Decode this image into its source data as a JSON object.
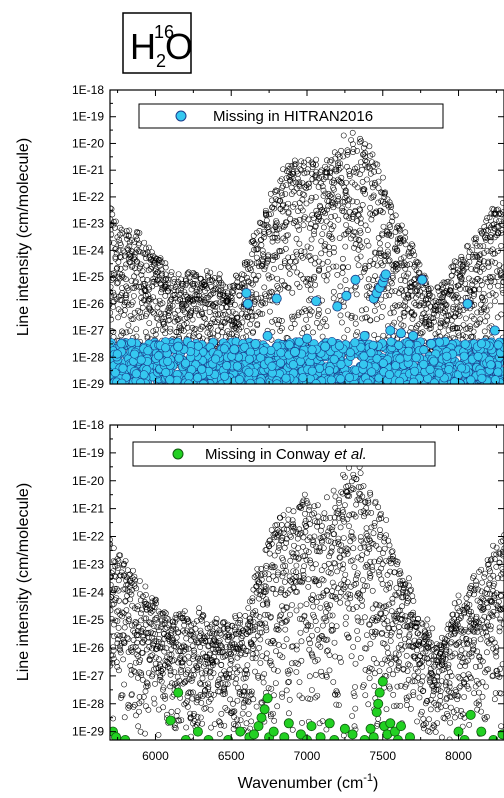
{
  "molecule_label": {
    "main": "H",
    "sub": "2",
    "sup": "16",
    "tail": "O"
  },
  "chart_data": [
    {
      "type": "scatter",
      "id": "top",
      "title": "",
      "xlabel": "",
      "ylabel": "Line intensity (cm/molecule)",
      "xlim": [
        5700,
        8300
      ],
      "ylim_log10": [
        -29,
        -18
      ],
      "log_y": true,
      "ytick_labels": [
        "1E-29",
        "1E-28",
        "1E-27",
        "1E-26",
        "1E-25",
        "1E-24",
        "1E-23",
        "1E-22",
        "1E-21",
        "1E-20",
        "1E-19",
        "1E-18"
      ],
      "legend": {
        "label": "Missing in HITRAN2016",
        "position": "top-center"
      },
      "background_series": {
        "name": "",
        "marker": "open-circle",
        "color": "#000000",
        "envelope": [
          [
            5700,
            -22.5
          ],
          [
            5900,
            -23.6
          ],
          [
            6100,
            -24.8
          ],
          [
            6300,
            -24.8
          ],
          [
            6500,
            -25.2
          ],
          [
            6600,
            -24.6
          ],
          [
            6700,
            -22.5
          ],
          [
            6800,
            -21.3
          ],
          [
            6950,
            -20.5
          ],
          [
            7100,
            -20.8
          ],
          [
            7250,
            -19.8
          ],
          [
            7350,
            -19.7
          ],
          [
            7450,
            -20.5
          ],
          [
            7550,
            -22.3
          ],
          [
            7700,
            -24.0
          ],
          [
            7850,
            -25.8
          ],
          [
            7950,
            -24.8
          ],
          [
            8100,
            -23.4
          ],
          [
            8300,
            -22.0
          ]
        ]
      },
      "highlight_series": {
        "name": "Missing in HITRAN2016",
        "marker": "filled-circle",
        "fill": "#35c8f0",
        "stroke": "#1a3c8c",
        "dense_band": {
          "x_range": [
            5700,
            8300
          ],
          "log10_range": [
            -29,
            -27.4
          ]
        },
        "points": [
          [
            6150,
            -27.6
          ],
          [
            6520,
            -27.7
          ],
          [
            6600,
            -25.6
          ],
          [
            6610,
            -26.0
          ],
          [
            6660,
            -27.5
          ],
          [
            6740,
            -27.2
          ],
          [
            6800,
            -25.8
          ],
          [
            6920,
            -27.8
          ],
          [
            7000,
            -27.3
          ],
          [
            7060,
            -25.9
          ],
          [
            7120,
            -27.6
          ],
          [
            7200,
            -26.1
          ],
          [
            7260,
            -25.7
          ],
          [
            7320,
            -25.1
          ],
          [
            7380,
            -27.2
          ],
          [
            7440,
            -25.8
          ],
          [
            7460,
            -25.6
          ],
          [
            7480,
            -25.4
          ],
          [
            7500,
            -25.2
          ],
          [
            7510,
            -25.0
          ],
          [
            7520,
            -24.9
          ],
          [
            7550,
            -27.0
          ],
          [
            7620,
            -27.1
          ],
          [
            7700,
            -27.2
          ],
          [
            7760,
            -25.1
          ],
          [
            7820,
            -27.5
          ],
          [
            8060,
            -26.0
          ],
          [
            8240,
            -27.0
          ]
        ]
      },
      "xtick_values": [
        6000,
        6500,
        7000,
        7500,
        8000
      ],
      "xtick_labels": [
        "6000",
        "6500",
        "7000",
        "7500",
        "8000"
      ]
    },
    {
      "type": "scatter",
      "id": "bottom",
      "title": "",
      "xlabel": "Wavenumber (cm",
      "xlabel_sup": "-1",
      "xlabel_tail": ")",
      "ylabel": "Line intensity (cm/molecule)",
      "xlim": [
        5700,
        8300
      ],
      "ylim_log10": [
        -29.3,
        -18
      ],
      "log_y": true,
      "ytick_labels": [
        "1E-29",
        "1E-28",
        "1E-27",
        "1E-26",
        "1E-25",
        "1E-24",
        "1E-23",
        "1E-22",
        "1E-21",
        "1E-20",
        "1E-19",
        "1E-18"
      ],
      "legend": {
        "label_main": "Missing in Conway ",
        "label_italic": "et al.",
        "position": "top-center"
      },
      "background_series": {
        "name": "",
        "marker": "open-circle",
        "color": "#000000",
        "envelope": [
          [
            5700,
            -22.3
          ],
          [
            5900,
            -23.6
          ],
          [
            6100,
            -24.8
          ],
          [
            6300,
            -24.8
          ],
          [
            6500,
            -25.2
          ],
          [
            6600,
            -24.6
          ],
          [
            6700,
            -22.5
          ],
          [
            6800,
            -21.3
          ],
          [
            6950,
            -20.5
          ],
          [
            7100,
            -20.8
          ],
          [
            7250,
            -19.8
          ],
          [
            7350,
            -19.7
          ],
          [
            7450,
            -20.5
          ],
          [
            7550,
            -22.3
          ],
          [
            7700,
            -24.0
          ],
          [
            7850,
            -25.8
          ],
          [
            7950,
            -24.8
          ],
          [
            8100,
            -23.4
          ],
          [
            8300,
            -22.0
          ]
        ]
      },
      "highlight_series": {
        "name": "Missing in Conway et al.",
        "marker": "filled-circle",
        "fill": "#22d022",
        "stroke": "#0f5a0f",
        "points": [
          [
            5720,
            -29.0
          ],
          [
            5740,
            -29.2
          ],
          [
            5800,
            -29.3
          ],
          [
            6100,
            -28.6
          ],
          [
            6150,
            -27.6
          ],
          [
            6200,
            -29.3
          ],
          [
            6280,
            -29.0
          ],
          [
            6350,
            -29.3
          ],
          [
            6480,
            -29.3
          ],
          [
            6560,
            -29.0
          ],
          [
            6620,
            -29.2
          ],
          [
            6650,
            -29.1
          ],
          [
            6680,
            -28.8
          ],
          [
            6700,
            -28.5
          ],
          [
            6720,
            -28.2
          ],
          [
            6740,
            -27.8
          ],
          [
            6750,
            -29.2
          ],
          [
            6780,
            -29.0
          ],
          [
            6850,
            -29.2
          ],
          [
            6880,
            -28.7
          ],
          [
            6960,
            -29.1
          ],
          [
            7000,
            -29.3
          ],
          [
            7030,
            -28.8
          ],
          [
            7090,
            -29.2
          ],
          [
            7150,
            -28.7
          ],
          [
            7180,
            -29.3
          ],
          [
            7250,
            -28.9
          ],
          [
            7300,
            -29.1
          ],
          [
            7380,
            -29.3
          ],
          [
            7420,
            -28.9
          ],
          [
            7440,
            -29.2
          ],
          [
            7460,
            -28.3
          ],
          [
            7470,
            -28.0
          ],
          [
            7480,
            -27.6
          ],
          [
            7500,
            -27.2
          ],
          [
            7510,
            -28.8
          ],
          [
            7530,
            -29.1
          ],
          [
            7550,
            -28.7
          ],
          [
            7580,
            -29.0
          ],
          [
            7600,
            -29.3
          ],
          [
            7620,
            -28.8
          ],
          [
            7680,
            -29.2
          ],
          [
            8000,
            -29.0
          ],
          [
            8040,
            -29.3
          ],
          [
            8080,
            -28.4
          ],
          [
            8150,
            -29.0
          ],
          [
            8230,
            -29.3
          ],
          [
            8290,
            -29.1
          ]
        ]
      },
      "xtick_values": [
        6000,
        6500,
        7000,
        7500,
        8000
      ],
      "xtick_labels": [
        "6000",
        "6500",
        "7000",
        "7500",
        "8000"
      ]
    }
  ]
}
